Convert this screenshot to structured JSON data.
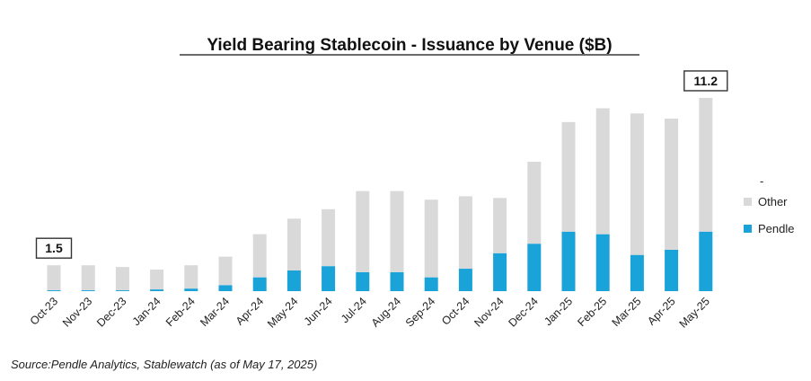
{
  "chart_data": {
    "type": "bar",
    "stacked": true,
    "title": "Yield Bearing Stablecoin - Issuance by Venue ($B)",
    "xlabel": "",
    "ylabel": "",
    "ylim": [
      0,
      12.5
    ],
    "grid": false,
    "legend_position": "right",
    "categories": [
      "Oct-23",
      "Nov-23",
      "Dec-23",
      "Jan-24",
      "Feb-24",
      "Mar-24",
      "Apr-24",
      "May-24",
      "Jun-24",
      "Jul-24",
      "Aug-24",
      "Sep-24",
      "Oct-24",
      "Nov-24",
      "Dec-24",
      "Jan-25",
      "Feb-25",
      "Mar-25",
      "Apr-25",
      "May-25"
    ],
    "series": [
      {
        "name": "Pendle",
        "color": "#1aa3d9",
        "values": [
          0.05,
          0.05,
          0.05,
          0.1,
          0.15,
          0.35,
          0.8,
          1.2,
          1.45,
          1.1,
          1.1,
          0.8,
          1.3,
          2.2,
          2.75,
          3.45,
          3.3,
          2.1,
          2.4,
          3.45
        ]
      },
      {
        "name": "Other",
        "color": "#d9d9d9",
        "values": [
          1.45,
          1.45,
          1.35,
          1.15,
          1.35,
          1.65,
          2.5,
          3.0,
          3.3,
          4.7,
          4.7,
          4.5,
          4.2,
          3.2,
          4.75,
          6.35,
          7.3,
          8.2,
          7.6,
          7.75
        ]
      }
    ],
    "legend_header": "-",
    "legend_order": [
      "Other",
      "Pendle"
    ],
    "annotations": [
      {
        "category": "Oct-23",
        "label": "1.5"
      },
      {
        "category": "May-25",
        "label": "11.2"
      }
    ]
  },
  "source_text": "Source:Pendle Analytics, Stablewatch (as of May 17, 2025)"
}
